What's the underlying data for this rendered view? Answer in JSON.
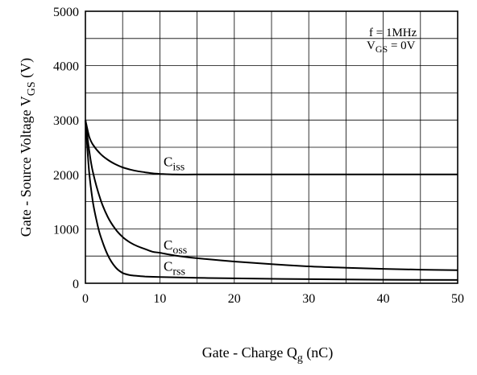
{
  "chart_data": {
    "type": "line",
    "xlabel": {
      "main": "Gate - Charge  Q",
      "sub": "g",
      "tail": " (nC)"
    },
    "ylabel": {
      "main": "Gate - Source Voltage  V",
      "sub": "GS",
      "tail": " (V)"
    },
    "xlim": [
      0,
      50
    ],
    "ylim": [
      0,
      5000
    ],
    "xticks": [
      0,
      10,
      20,
      30,
      40,
      50
    ],
    "yticks": [
      0,
      1000,
      2000,
      3000,
      4000,
      5000
    ],
    "minor_x_step": 5,
    "minor_y_step": 500,
    "grid": true,
    "annotation": {
      "line1": "f = 1MHz",
      "line2_main": "V",
      "line2_sub": "GS",
      "line2_tail": " = 0V"
    },
    "series": [
      {
        "name_main": "C",
        "name_sub": "iss",
        "x": [
          0,
          0.5,
          1,
          2,
          3,
          4,
          5,
          6,
          7,
          8,
          9,
          10,
          12,
          15,
          20,
          30,
          40,
          50
        ],
        "values": [
          3000,
          2700,
          2550,
          2380,
          2270,
          2190,
          2130,
          2090,
          2060,
          2040,
          2020,
          2010,
          2000,
          2000,
          2000,
          2000,
          2000,
          2000
        ]
      },
      {
        "name_main": "C",
        "name_sub": "oss",
        "x": [
          0,
          0.5,
          1,
          2,
          3,
          4,
          5,
          6,
          7,
          8,
          9,
          10,
          12,
          15,
          20,
          25,
          30,
          35,
          40,
          45,
          50
        ],
        "values": [
          3000,
          2450,
          2050,
          1550,
          1220,
          1000,
          850,
          750,
          680,
          630,
          580,
          560,
          510,
          460,
          400,
          350,
          310,
          285,
          265,
          250,
          240
        ]
      },
      {
        "name_main": "C",
        "name_sub": "rss",
        "x": [
          0,
          0.5,
          1,
          1.5,
          2,
          3,
          4,
          5,
          6,
          7,
          8,
          10,
          15,
          20,
          30,
          40,
          50
        ],
        "values": [
          3000,
          2050,
          1500,
          1150,
          880,
          520,
          300,
          190,
          150,
          135,
          125,
          115,
          100,
          90,
          75,
          65,
          60
        ]
      }
    ]
  }
}
